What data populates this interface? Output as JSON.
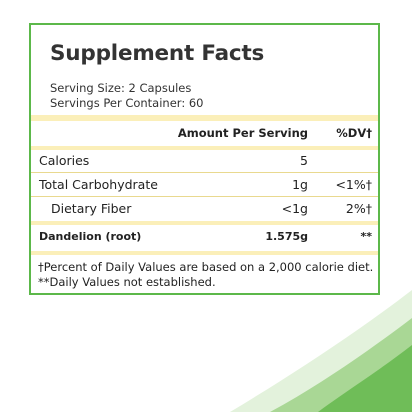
{
  "panel": {
    "title": "Supplement Facts",
    "serving_size": "Serving Size: 2 Capsules",
    "servings_per_container": "Servings Per Container: 60"
  },
  "table": {
    "header": {
      "amount": "Amount Per Serving",
      "dv": "%DV†"
    },
    "rows": [
      {
        "name": "Calories",
        "amount": "5",
        "dv": ""
      },
      {
        "name": "Total Carbohydrate",
        "amount": "1g",
        "dv": "<1%†"
      },
      {
        "name": "Dietary Fiber",
        "amount": "<1g",
        "dv": "2%†"
      },
      {
        "name": "Dandelion (root)",
        "amount": "1.575g",
        "dv": "**"
      }
    ]
  },
  "footnotes": [
    "†Percent of Daily Values are based on a 2,000 calorie diet.",
    "**Daily Values not established."
  ],
  "colors": {
    "border": "#5cb84a",
    "band": "#fbefb9",
    "swoosh": "#7cc36a"
  }
}
